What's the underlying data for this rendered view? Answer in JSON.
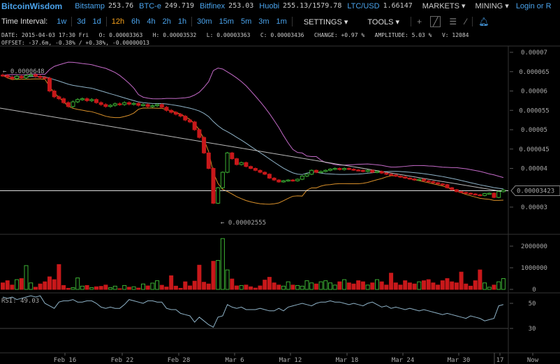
{
  "header": {
    "logo": "BitcoinWisdom",
    "tickers": [
      {
        "name": "Bitstamp",
        "price": "253.76"
      },
      {
        "name": "BTC-e",
        "price": "249.719"
      },
      {
        "name": "Bitfinex",
        "price": "253.03"
      },
      {
        "name": "Huobi",
        "price": "255.13/1579.78"
      },
      {
        "name": "LTC/USD",
        "price": "1.66147"
      }
    ],
    "markets": "MARKETS ▾",
    "mining": "MINING ▾",
    "login": "Login or R"
  },
  "toolbar": {
    "label": "Time Interval:",
    "intervals": [
      "1w",
      "3d",
      "1d",
      "12h",
      "6h",
      "4h",
      "2h",
      "1h",
      "30m",
      "15m",
      "5m",
      "3m",
      "1m"
    ],
    "active": "12h",
    "settings": "SETTINGS ▾",
    "tools": "TOOLS ▾",
    "tool_icons": [
      "crosshair-icon",
      "line-icon",
      "hlines-icon",
      "fib-icon",
      "bell-icon"
    ]
  },
  "info": {
    "line1": "DATE: 2015-04-03 17:30 Fri   O: 0.00003363   H: 0.00003532   L: 0.00003363   C: 0.00003436   CHANGE: +0.97 %   AMPLITUDE: 5.03 %   V: 12084",
    "line2": "OFFSET: -37.6m, -0.38% / +0.38%, -0.00000013"
  },
  "colors": {
    "up": "#3cb034",
    "down": "#c8181a",
    "upper_band": "#c46ac8",
    "mid_band": "#8fb3c8",
    "lower_band": "#d9902a",
    "rsi": "#8fb3c8",
    "link": "#4aa3ec"
  },
  "chart_data": {
    "type": "candlestick",
    "price_ticks": [
      "0.00007",
      "0.000065",
      "0.00006",
      "0.000055",
      "0.00005",
      "0.000045",
      "0.00004",
      "0.00003"
    ],
    "price_range": [
      3e-05,
      7e-05
    ],
    "current_price": "0.00003423",
    "high_label": "← 0.0000648",
    "low_label": "← 0.00002555",
    "x_ticks": [
      "Feb 16",
      "Feb 22",
      "Feb 28",
      "Mar 6",
      "Mar 12",
      "Mar 18",
      "Mar 24",
      "Mar 30",
      "17",
      "Now"
    ],
    "closes": [
      6.4e-05,
      6.36e-05,
      6.32e-05,
      6.38e-05,
      6.34e-05,
      6.4e-05,
      6.42e-05,
      6.38e-05,
      6.35e-05,
      6.33e-05,
      6e-05,
      5.85e-05,
      5.8e-05,
      5.7e-05,
      5.6e-05,
      5.72e-05,
      5.78e-05,
      5.8e-05,
      5.75e-05,
      5.78e-05,
      5.7e-05,
      5.65e-05,
      5.6e-05,
      5.63e-05,
      5.67e-05,
      5.65e-05,
      5.7e-05,
      5.66e-05,
      5.68e-05,
      5.63e-05,
      5.65e-05,
      5.6e-05,
      5.62e-05,
      5.65e-05,
      5.58e-05,
      5.5e-05,
      5.45e-05,
      5.4e-05,
      5.35e-05,
      5.25e-05,
      5.2e-05,
      5e-05,
      4.8e-05,
      4.4e-05,
      4e-05,
      3.1e-05,
      3.5e-05,
      3.9e-05,
      4.4e-05,
      4.25e-05,
      4.1e-05,
      4.15e-05,
      4.05e-05,
      4e-05,
      3.95e-05,
      3.9e-05,
      3.85e-05,
      3.75e-05,
      3.7e-05,
      3.65e-05,
      3.68e-05,
      3.7e-05,
      3.68e-05,
      3.72e-05,
      3.8e-05,
      3.85e-05,
      3.95e-05,
      3.9e-05,
      3.92e-05,
      3.95e-05,
      3.98e-05,
      4e-05,
      3.97e-05,
      4e-05,
      3.98e-05,
      3.96e-05,
      3.95e-05,
      3.92e-05,
      3.95e-05,
      3.9e-05,
      3.92e-05,
      3.88e-05,
      3.85e-05,
      3.83e-05,
      3.8e-05,
      3.78e-05,
      3.75e-05,
      3.73e-05,
      3.7e-05,
      3.72e-05,
      3.68e-05,
      3.66e-05,
      3.63e-05,
      3.6e-05,
      3.58e-05,
      3.5e-05,
      3.45e-05,
      3.4e-05,
      3.38e-05,
      3.36e-05,
      3.34e-05,
      3.32e-05,
      3.3e-05,
      3.35e-05,
      3.36e-05,
      3.25e-05,
      3.4e-05,
      3.44e-05
    ],
    "volume_ticks": [
      "2000000",
      "1000000",
      "0"
    ],
    "volumes": [
      300000,
      400000,
      200000,
      450000,
      500000,
      1100000,
      300000,
      100000,
      250000,
      350000,
      580000,
      450000,
      1150000,
      180000,
      50000,
      80000,
      530000,
      150000,
      180000,
      80000,
      120000,
      140000,
      200000,
      80000,
      150000,
      30000,
      180000,
      100000,
      120000,
      60000,
      250000,
      160000,
      290000,
      400000,
      190000,
      110000,
      630000,
      150000,
      50000,
      350000,
      160000,
      380000,
      1120000,
      330000,
      250000,
      1300000,
      1340000,
      2350000,
      900000,
      480000,
      160000,
      180000,
      200000,
      120000,
      60000,
      160000,
      430000,
      560000,
      300000,
      200000,
      150000,
      350000,
      200000,
      180000,
      150000,
      400000,
      300000,
      250000,
      350000,
      400000,
      300000,
      200000,
      350000,
      450000,
      300000,
      250000,
      400000,
      350000,
      200000,
      300000,
      450000,
      350000,
      200000,
      750000,
      300000,
      200000,
      400000,
      300000,
      250000,
      350000,
      400000,
      450000,
      300000,
      200000,
      400000,
      500000,
      350000,
      300000,
      800000,
      250000,
      150000,
      400000,
      900000,
      300000,
      100000,
      200000,
      350000,
      500000
    ],
    "rsi_label": "RSI: 49.03",
    "rsi_ticks": [
      "50",
      "30"
    ],
    "rsi": [
      55,
      54,
      55,
      53,
      54,
      55,
      56,
      55,
      56,
      50,
      48,
      46,
      51,
      52,
      52,
      53,
      51,
      51,
      52,
      52,
      50,
      47,
      46,
      47,
      46,
      46,
      49,
      53,
      52,
      51,
      50,
      52,
      52,
      51,
      51,
      46,
      45,
      45,
      42,
      41,
      40,
      35,
      39,
      36,
      33,
      31,
      39,
      40,
      49,
      47,
      46,
      47,
      45,
      45,
      45,
      46,
      45,
      44,
      44,
      46,
      44,
      47,
      48,
      49,
      50,
      49,
      48,
      50,
      51,
      51,
      52,
      51,
      51,
      50,
      49,
      50,
      49,
      48,
      50,
      51,
      49,
      47,
      48,
      46,
      47,
      46,
      45,
      46,
      45,
      44,
      45,
      44,
      43,
      42,
      41,
      42,
      41,
      40,
      39,
      38,
      40,
      39,
      38,
      36,
      37,
      38,
      48,
      49.03
    ]
  }
}
